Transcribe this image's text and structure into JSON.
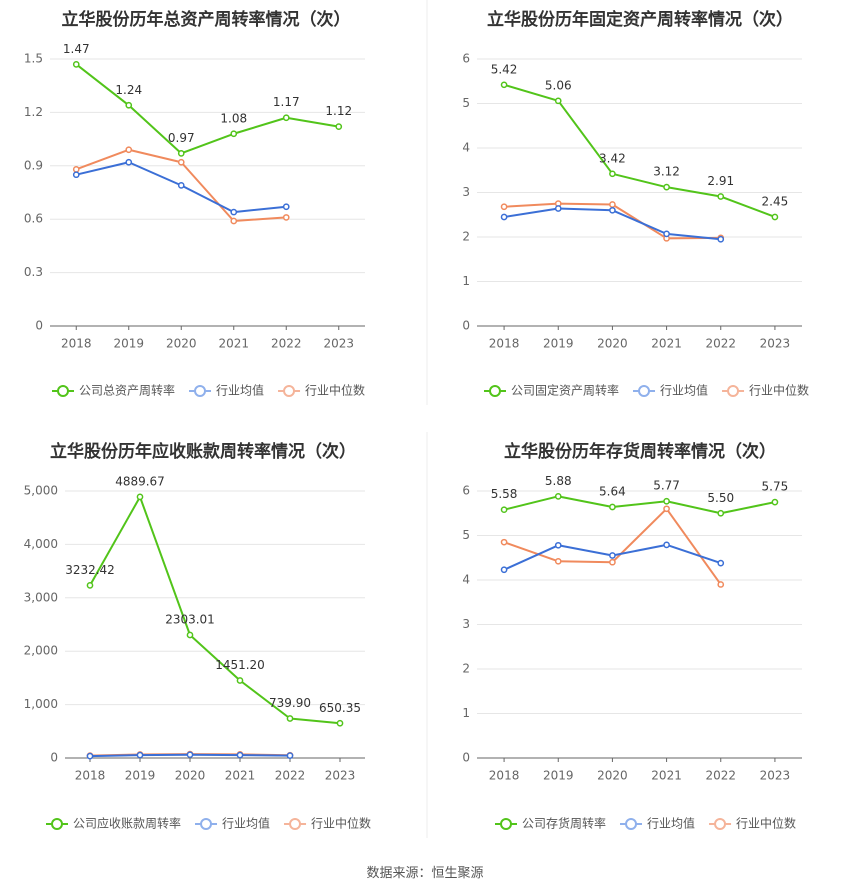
{
  "source_text": "数据来源：恒生聚源",
  "chart_data": [
    {
      "type": "line",
      "title": "立华股份历年总资产周转率情况（次）",
      "categories": [
        "2018",
        "2019",
        "2020",
        "2021",
        "2022",
        "2023"
      ],
      "ylim": [
        0,
        1.5
      ],
      "yticks": [
        0,
        0.3,
        0.6,
        0.9,
        1.2,
        1.5
      ],
      "ytick_labels": [
        "0",
        "0.3",
        "0.6",
        "0.9",
        "1.2",
        "1.5"
      ],
      "grid": true,
      "legend_position": "bottom",
      "series": [
        {
          "name": "公司总资产周转率",
          "color": "#52c41a",
          "values": [
            1.47,
            1.24,
            0.97,
            1.08,
            1.17,
            1.12
          ],
          "labels": [
            "1.47",
            "1.24",
            "0.97",
            "1.08",
            "1.17",
            "1.12"
          ]
        },
        {
          "name": "行业均值",
          "color": "#3b6fd6",
          "values": [
            0.85,
            0.92,
            0.79,
            0.64,
            0.67,
            null
          ]
        },
        {
          "name": "行业中位数",
          "color": "#f08a5d",
          "values": [
            0.88,
            0.99,
            0.92,
            0.59,
            0.61,
            null
          ]
        }
      ]
    },
    {
      "type": "line",
      "title": "立华股份历年固定资产周转率情况（次）",
      "categories": [
        "2018",
        "2019",
        "2020",
        "2021",
        "2022",
        "2023"
      ],
      "ylim": [
        0,
        6
      ],
      "yticks": [
        0,
        1,
        2,
        3,
        4,
        5,
        6
      ],
      "ytick_labels": [
        "0",
        "1",
        "2",
        "3",
        "4",
        "5",
        "6"
      ],
      "grid": true,
      "legend_position": "bottom",
      "series": [
        {
          "name": "公司固定资产周转率",
          "color": "#52c41a",
          "values": [
            5.42,
            5.06,
            3.42,
            3.12,
            2.91,
            2.45
          ],
          "labels": [
            "5.42",
            "5.06",
            "3.42",
            "3.12",
            "2.91",
            "2.45"
          ]
        },
        {
          "name": "行业均值",
          "color": "#3b6fd6",
          "values": [
            2.45,
            2.64,
            2.6,
            2.07,
            1.95,
            null
          ]
        },
        {
          "name": "行业中位数",
          "color": "#f08a5d",
          "values": [
            2.68,
            2.75,
            2.73,
            1.97,
            1.98,
            null
          ]
        }
      ]
    },
    {
      "type": "line",
      "title": "立华股份历年应收账款周转率情况（次）",
      "categories": [
        "2018",
        "2019",
        "2020",
        "2021",
        "2022",
        "2023"
      ],
      "ylim": [
        0,
        5000
      ],
      "yticks": [
        0,
        1000,
        2000,
        3000,
        4000,
        5000
      ],
      "ytick_labels": [
        "0",
        "1,000",
        "2,000",
        "3,000",
        "4,000",
        "5,000"
      ],
      "grid": true,
      "legend_position": "bottom",
      "series": [
        {
          "name": "公司应收账款周转率",
          "color": "#52c41a",
          "values": [
            3232.42,
            4889.67,
            2303.01,
            1451.2,
            739.9,
            650.35
          ],
          "labels": [
            "3232.42",
            "4889.67",
            "2303.01",
            "1451.20",
            "739.90",
            "650.35"
          ]
        },
        {
          "name": "行业均值",
          "color": "#3b6fd6",
          "values": [
            35,
            55,
            62,
            55,
            45,
            null
          ]
        },
        {
          "name": "行业中位数",
          "color": "#f08a5d",
          "values": [
            45,
            65,
            72,
            68,
            52,
            null
          ]
        }
      ]
    },
    {
      "type": "line",
      "title": "立华股份历年存货周转率情况（次）",
      "categories": [
        "2018",
        "2019",
        "2020",
        "2021",
        "2022",
        "2023"
      ],
      "ylim": [
        0,
        6
      ],
      "yticks": [
        0,
        1,
        2,
        3,
        4,
        5,
        6
      ],
      "ytick_labels": [
        "0",
        "1",
        "2",
        "3",
        "4",
        "5",
        "6"
      ],
      "grid": true,
      "legend_position": "bottom",
      "series": [
        {
          "name": "公司存货周转率",
          "color": "#52c41a",
          "values": [
            5.58,
            5.88,
            5.64,
            5.77,
            5.5,
            5.75
          ],
          "labels": [
            "5.58",
            "5.88",
            "5.64",
            "5.77",
            "5.50",
            "5.75"
          ]
        },
        {
          "name": "行业均值",
          "color": "#3b6fd6",
          "values": [
            4.23,
            4.78,
            4.55,
            4.79,
            4.38,
            null
          ]
        },
        {
          "name": "行业中位数",
          "color": "#f08a5d",
          "values": [
            4.85,
            4.42,
            4.4,
            5.6,
            3.9,
            null
          ]
        }
      ]
    }
  ]
}
